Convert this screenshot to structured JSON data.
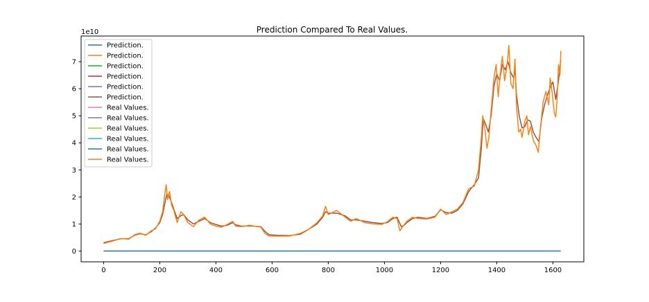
{
  "chart_data": {
    "type": "line",
    "title": "Prediction Compared To Real Values.",
    "xlabel": "",
    "ylabel": "",
    "y_offset_label": "1e10",
    "xlim": [
      -80,
      1710
    ],
    "ylim": [
      -0.4,
      7.95
    ],
    "x_ticks": [
      0,
      200,
      400,
      600,
      800,
      1000,
      1200,
      1400,
      1600
    ],
    "y_ticks": [
      0,
      1,
      2,
      3,
      4,
      5,
      6,
      7
    ],
    "grid": false,
    "legend_position": "top-left",
    "legend": [
      {
        "label": "Prediction.",
        "color": "#1f77b4"
      },
      {
        "label": "Prediction.",
        "color": "#ff7f0e"
      },
      {
        "label": "Prediction.",
        "color": "#2ca02c"
      },
      {
        "label": "Prediction.",
        "color": "#d62728"
      },
      {
        "label": "Prediction.",
        "color": "#9467bd"
      },
      {
        "label": "Prediction.",
        "color": "#8c564b"
      },
      {
        "label": "Real Values.",
        "color": "#e377c2"
      },
      {
        "label": "Real Values.",
        "color": "#7f7f7f"
      },
      {
        "label": "Real Values.",
        "color": "#bcbd22"
      },
      {
        "label": "Real Values.",
        "color": "#17becf"
      },
      {
        "label": "Real Values.",
        "color": "#1f77b4"
      },
      {
        "label": "Real Values.",
        "color": "#ff7f0e"
      }
    ],
    "series": [
      {
        "name": "Prediction.",
        "color": "#8c564b",
        "points": [
          [
            0,
            0.31
          ],
          [
            30,
            0.38
          ],
          [
            60,
            0.45
          ],
          [
            90,
            0.46
          ],
          [
            110,
            0.58
          ],
          [
            130,
            0.64
          ],
          [
            150,
            0.6
          ],
          [
            170,
            0.72
          ],
          [
            185,
            0.85
          ],
          [
            200,
            1.05
          ],
          [
            210,
            1.35
          ],
          [
            218,
            1.75
          ],
          [
            225,
            2.1
          ],
          [
            232,
            2.05
          ],
          [
            240,
            1.85
          ],
          [
            250,
            1.55
          ],
          [
            262,
            1.2
          ],
          [
            275,
            1.3
          ],
          [
            285,
            1.35
          ],
          [
            300,
            1.15
          ],
          [
            320,
            1.0
          ],
          [
            340,
            1.1
          ],
          [
            360,
            1.2
          ],
          [
            380,
            1.05
          ],
          [
            400,
            0.98
          ],
          [
            420,
            0.92
          ],
          [
            440,
            0.95
          ],
          [
            460,
            1.05
          ],
          [
            470,
            0.97
          ],
          [
            490,
            0.92
          ],
          [
            520,
            0.93
          ],
          [
            560,
            0.9
          ],
          [
            575,
            0.72
          ],
          [
            590,
            0.6
          ],
          [
            620,
            0.58
          ],
          [
            660,
            0.57
          ],
          [
            700,
            0.62
          ],
          [
            730,
            0.8
          ],
          [
            760,
            1.0
          ],
          [
            780,
            1.25
          ],
          [
            790,
            1.45
          ],
          [
            800,
            1.4
          ],
          [
            830,
            1.4
          ],
          [
            860,
            1.3
          ],
          [
            880,
            1.15
          ],
          [
            900,
            1.15
          ],
          [
            930,
            1.1
          ],
          [
            960,
            1.05
          ],
          [
            990,
            1.02
          ],
          [
            1010,
            1.05
          ],
          [
            1030,
            1.2
          ],
          [
            1045,
            1.25
          ],
          [
            1060,
            0.9
          ],
          [
            1070,
            0.95
          ],
          [
            1080,
            1.05
          ],
          [
            1100,
            1.2
          ],
          [
            1120,
            1.25
          ],
          [
            1150,
            1.2
          ],
          [
            1180,
            1.28
          ],
          [
            1200,
            1.52
          ],
          [
            1220,
            1.42
          ],
          [
            1240,
            1.4
          ],
          [
            1260,
            1.5
          ],
          [
            1280,
            1.75
          ],
          [
            1300,
            2.2
          ],
          [
            1320,
            2.45
          ],
          [
            1335,
            2.7
          ],
          [
            1345,
            3.8
          ],
          [
            1352,
            4.9
          ],
          [
            1360,
            4.7
          ],
          [
            1370,
            4.4
          ],
          [
            1380,
            5.0
          ],
          [
            1390,
            6.1
          ],
          [
            1400,
            6.55
          ],
          [
            1410,
            6.3
          ],
          [
            1420,
            6.9
          ],
          [
            1430,
            6.7
          ],
          [
            1440,
            7.0
          ],
          [
            1450,
            6.6
          ],
          [
            1460,
            6.4
          ],
          [
            1465,
            6.7
          ],
          [
            1470,
            5.8
          ],
          [
            1480,
            5.0
          ],
          [
            1490,
            4.55
          ],
          [
            1500,
            4.6
          ],
          [
            1510,
            4.85
          ],
          [
            1520,
            4.8
          ],
          [
            1530,
            4.4
          ],
          [
            1540,
            4.2
          ],
          [
            1550,
            4.05
          ],
          [
            1560,
            4.9
          ],
          [
            1570,
            5.4
          ],
          [
            1580,
            5.75
          ],
          [
            1590,
            6.05
          ],
          [
            1600,
            6.25
          ],
          [
            1610,
            5.6
          ],
          [
            1620,
            6.3
          ],
          [
            1628,
            7.05
          ]
        ]
      },
      {
        "name": "Real Values.",
        "color": "#ff7f0e",
        "points": [
          [
            0,
            0.28
          ],
          [
            30,
            0.36
          ],
          [
            60,
            0.46
          ],
          [
            90,
            0.44
          ],
          [
            110,
            0.6
          ],
          [
            130,
            0.66
          ],
          [
            150,
            0.58
          ],
          [
            170,
            0.75
          ],
          [
            185,
            0.82
          ],
          [
            200,
            1.1
          ],
          [
            210,
            1.45
          ],
          [
            218,
            2.1
          ],
          [
            223,
            2.45
          ],
          [
            228,
            1.9
          ],
          [
            235,
            2.2
          ],
          [
            242,
            1.7
          ],
          [
            250,
            1.5
          ],
          [
            262,
            1.05
          ],
          [
            275,
            1.45
          ],
          [
            285,
            1.35
          ],
          [
            300,
            1.05
          ],
          [
            320,
            0.9
          ],
          [
            340,
            1.15
          ],
          [
            360,
            1.25
          ],
          [
            380,
            1.0
          ],
          [
            400,
            0.92
          ],
          [
            420,
            0.88
          ],
          [
            440,
            0.98
          ],
          [
            460,
            1.1
          ],
          [
            470,
            0.92
          ],
          [
            490,
            0.9
          ],
          [
            520,
            0.95
          ],
          [
            560,
            0.88
          ],
          [
            575,
            0.65
          ],
          [
            590,
            0.55
          ],
          [
            620,
            0.55
          ],
          [
            660,
            0.55
          ],
          [
            700,
            0.65
          ],
          [
            730,
            0.8
          ],
          [
            760,
            1.05
          ],
          [
            780,
            1.3
          ],
          [
            790,
            1.65
          ],
          [
            800,
            1.35
          ],
          [
            830,
            1.5
          ],
          [
            860,
            1.25
          ],
          [
            880,
            1.1
          ],
          [
            900,
            1.2
          ],
          [
            930,
            1.05
          ],
          [
            960,
            1.0
          ],
          [
            990,
            0.98
          ],
          [
            1010,
            1.08
          ],
          [
            1030,
            1.25
          ],
          [
            1045,
            1.2
          ],
          [
            1055,
            0.75
          ],
          [
            1065,
            0.9
          ],
          [
            1080,
            1.1
          ],
          [
            1100,
            1.25
          ],
          [
            1120,
            1.2
          ],
          [
            1150,
            1.18
          ],
          [
            1180,
            1.25
          ],
          [
            1200,
            1.55
          ],
          [
            1220,
            1.35
          ],
          [
            1240,
            1.45
          ],
          [
            1260,
            1.55
          ],
          [
            1280,
            1.8
          ],
          [
            1300,
            2.3
          ],
          [
            1320,
            2.4
          ],
          [
            1335,
            3.0
          ],
          [
            1345,
            4.2
          ],
          [
            1350,
            5.0
          ],
          [
            1358,
            4.5
          ],
          [
            1365,
            3.8
          ],
          [
            1372,
            4.2
          ],
          [
            1380,
            5.2
          ],
          [
            1390,
            6.4
          ],
          [
            1398,
            6.9
          ],
          [
            1405,
            5.7
          ],
          [
            1412,
            6.5
          ],
          [
            1420,
            7.2
          ],
          [
            1428,
            6.3
          ],
          [
            1437,
            6.9
          ],
          [
            1443,
            7.6
          ],
          [
            1450,
            6.2
          ],
          [
            1458,
            6.0
          ],
          [
            1465,
            7.1
          ],
          [
            1470,
            5.4
          ],
          [
            1478,
            4.4
          ],
          [
            1485,
            4.5
          ],
          [
            1490,
            4.2
          ],
          [
            1500,
            4.8
          ],
          [
            1507,
            5.0
          ],
          [
            1513,
            4.3
          ],
          [
            1520,
            4.6
          ],
          [
            1530,
            4.1
          ],
          [
            1540,
            3.9
          ],
          [
            1548,
            3.65
          ],
          [
            1555,
            4.5
          ],
          [
            1565,
            5.5
          ],
          [
            1575,
            5.9
          ],
          [
            1585,
            5.4
          ],
          [
            1590,
            6.4
          ],
          [
            1598,
            5.8
          ],
          [
            1605,
            5.1
          ],
          [
            1610,
            4.95
          ],
          [
            1615,
            5.6
          ],
          [
            1620,
            6.9
          ],
          [
            1625,
            6.5
          ],
          [
            1628,
            7.4
          ]
        ]
      },
      {
        "name": "Prediction.",
        "color": "#1f77b4",
        "points": [
          [
            0,
            0
          ],
          [
            1628,
            0
          ]
        ]
      }
    ]
  }
}
